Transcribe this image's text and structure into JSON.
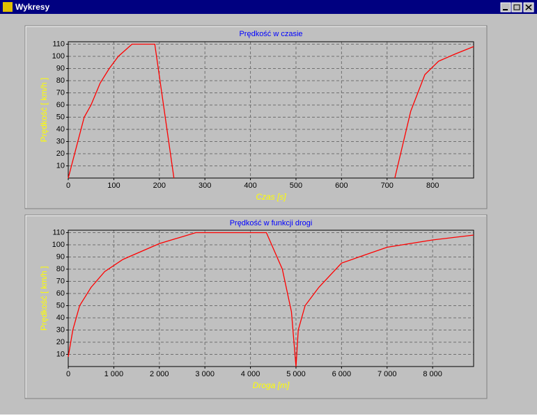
{
  "window": {
    "title": "Wykresy"
  },
  "chart_data": [
    {
      "type": "line",
      "title": "Prędkość w czasie",
      "x_label": "Czas [s]",
      "y_label": "Prędkość [ km/h ]",
      "color": "#ff0000",
      "grid": true,
      "x": [
        0,
        35,
        50,
        70,
        90,
        110,
        140,
        190,
        232,
        475,
        717,
        752,
        783,
        813,
        850,
        890
      ],
      "values": [
        0,
        50,
        60,
        78,
        90,
        100,
        110,
        110,
        0,
        null,
        0,
        55,
        85,
        96,
        102,
        108
      ],
      "xlim": [
        0,
        890
      ],
      "ylim": [
        0,
        112
      ],
      "xticks": [
        0,
        100,
        200,
        300,
        400,
        500,
        600,
        700,
        800
      ],
      "yticks": [
        10,
        20,
        30,
        40,
        50,
        60,
        70,
        80,
        90,
        100,
        110
      ]
    },
    {
      "type": "line",
      "title": "Prędkość w funkcji drogi",
      "x_label": "Droga [m]",
      "y_label": "Prędkość [ km/h ]",
      "color": "#ff0000",
      "grid": true,
      "x": [
        0,
        100,
        250,
        500,
        800,
        1200,
        2000,
        2800,
        4350,
        4700,
        4900,
        5000,
        5050,
        5200,
        5500,
        6000,
        7000,
        8000,
        8900
      ],
      "values": [
        8,
        30,
        50,
        65,
        78,
        88,
        101,
        110,
        110,
        80,
        45,
        0,
        30,
        50,
        65,
        85,
        98,
        104,
        108
      ],
      "xlim": [
        0,
        8900
      ],
      "ylim": [
        0,
        112
      ],
      "xticks": [
        0,
        {
          "value": 1000,
          "label": "1 000"
        },
        {
          "value": 2000,
          "label": "2 000"
        },
        {
          "value": 3000,
          "label": "3 000"
        },
        {
          "value": 4000,
          "label": "4 000"
        },
        {
          "value": 5000,
          "label": "5 000"
        },
        {
          "value": 6000,
          "label": "6 000"
        },
        {
          "value": 7000,
          "label": "7 000"
        },
        {
          "value": 8000,
          "label": "8 000"
        }
      ],
      "yticks": [
        10,
        20,
        30,
        40,
        50,
        60,
        70,
        80,
        90,
        100,
        110
      ]
    }
  ]
}
